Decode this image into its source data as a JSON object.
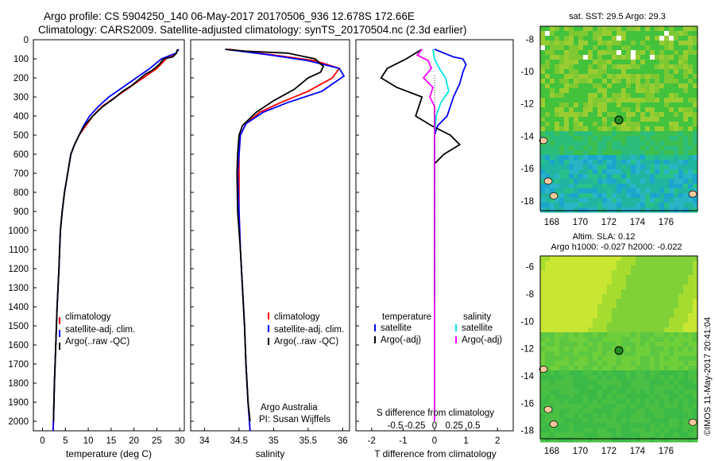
{
  "header": {
    "line1": "Argo profile: CS 5904250_140 06-May-2017 20170506_936 12.678S 172.66E",
    "line2": "Climatology: CARS2009. Satellite-adjusted climatology: synTS_20170504.nc (2.3d earlier)"
  },
  "colors": {
    "climatology": "#ff0000",
    "satellite": "#0000ff",
    "argo": "#000000",
    "sal_satellite": "#00e5e5",
    "sal_argo": "#ff00ff"
  },
  "depth_ticks": [
    "0",
    "100",
    "200",
    "300",
    "400",
    "500",
    "600",
    "700",
    "800",
    "900",
    "1000",
    "1100",
    "1200",
    "1300",
    "1400",
    "1500",
    "1600",
    "1700",
    "1800",
    "1900",
    "2000"
  ],
  "temp_panel": {
    "xlabel": "temperature (deg C)",
    "xticks": [
      "0",
      "5",
      "10",
      "15",
      "20",
      "25",
      "30"
    ],
    "legend": [
      "climatology",
      "satellite-adj. clim.",
      "Argo(..raw -QC)"
    ]
  },
  "sal_panel": {
    "xlabel": "salinity",
    "xticks": [
      "34",
      "34.5",
      "35",
      "35.5",
      "36"
    ],
    "legend": [
      "climatology",
      "satellite-adj. clim.",
      "Argo(..raw -QC)"
    ],
    "credit1": "Argo Australia",
    "credit2": "PI: Susan Wijffels"
  },
  "diff_panel": {
    "legend_temp_title": "temperature",
    "legend_sal_title": "salinity",
    "legend_temp": [
      "satellite",
      "Argo(-adj)"
    ],
    "legend_sal": [
      "satellite",
      "Argo(-adj)"
    ],
    "s_label": "S difference from climatology",
    "s_ticks": [
      "-0.5",
      "-0.25",
      "0",
      "0.25",
      "0.5"
    ],
    "t_ticks": [
      "-2",
      "-1",
      "0",
      "1",
      "2"
    ],
    "xlabel": "T difference from climatology"
  },
  "map_sst": {
    "title": "sat. SST: 29.5 Argo: 29.3",
    "lat_ticks": [
      "-8",
      "-10",
      "-12",
      "-14",
      "-16",
      "-18"
    ],
    "lon_ticks": [
      "168",
      "170",
      "172",
      "174",
      "176"
    ]
  },
  "map_sla": {
    "title1": "Altim. SLA: 0.12",
    "title2": "Argo h1000: -0.027 h2000: -0.022",
    "lat_ticks": [
      "-6",
      "-8",
      "-10",
      "-12",
      "-14",
      "-16",
      "-18"
    ],
    "lon_ticks": [
      "168",
      "170",
      "172",
      "174",
      "176"
    ]
  },
  "footer": "©IMOS 11-May-2017 20:41:04",
  "chart_data": [
    {
      "type": "line",
      "xlabel": "temperature (deg C)",
      "ylim": [
        2050,
        0
      ],
      "xlim": [
        -2,
        31
      ],
      "series": [
        {
          "name": "climatology",
          "color": "#ff0000",
          "points": [
            [
              29.7,
              50
            ],
            [
              29.2,
              70
            ],
            [
              27,
              100
            ],
            [
              25,
              150
            ],
            [
              22,
              200
            ],
            [
              19,
              250
            ],
            [
              16,
              300
            ],
            [
              13,
              350
            ],
            [
              11,
              400
            ],
            [
              9.5,
              450
            ],
            [
              8,
              500
            ],
            [
              7,
              550
            ],
            [
              6.2,
              600
            ],
            [
              5.5,
              700
            ],
            [
              4.8,
              800
            ],
            [
              4.3,
              900
            ],
            [
              3.9,
              1000
            ],
            [
              3.6,
              1200
            ],
            [
              3.2,
              1400
            ],
            [
              2.9,
              1600
            ],
            [
              2.6,
              1800
            ],
            [
              2.4,
              2000
            ],
            [
              2.3,
              2050
            ]
          ]
        },
        {
          "name": "satellite-adj. clim.",
          "color": "#0000ff",
          "points": [
            [
              29.8,
              50
            ],
            [
              29.2,
              70
            ],
            [
              26,
              100
            ],
            [
              23.5,
              150
            ],
            [
              20.5,
              200
            ],
            [
              17.5,
              250
            ],
            [
              14.5,
              300
            ],
            [
              12.2,
              350
            ],
            [
              10.3,
              400
            ],
            [
              9,
              450
            ],
            [
              8,
              500
            ],
            [
              7,
              550
            ],
            [
              6.2,
              600
            ],
            [
              5.5,
              700
            ],
            [
              4.8,
              800
            ],
            [
              4.3,
              900
            ],
            [
              3.9,
              1000
            ],
            [
              3.6,
              1200
            ],
            [
              3.2,
              1400
            ],
            [
              2.9,
              1600
            ],
            [
              2.6,
              1800
            ],
            [
              2.4,
              2000
            ],
            [
              2.3,
              2050
            ]
          ]
        },
        {
          "name": "Argo(..raw -QC)",
          "color": "#000000",
          "points": [
            [
              29.5,
              50
            ],
            [
              29.3,
              70
            ],
            [
              28.5,
              90
            ],
            [
              26.5,
              100
            ],
            [
              25.5,
              130
            ],
            [
              24,
              160
            ],
            [
              22.5,
              180
            ],
            [
              21,
              210
            ],
            [
              19.5,
              240
            ],
            [
              17.5,
              270
            ],
            [
              15.5,
              310
            ],
            [
              13.2,
              350
            ],
            [
              11,
              400
            ],
            [
              9.2,
              450
            ],
            [
              8,
              500
            ],
            [
              7,
              550
            ],
            [
              6.2,
              600
            ],
            [
              5.5,
              700
            ],
            [
              4.8,
              800
            ],
            [
              4.3,
              900
            ],
            [
              3.9,
              1000
            ],
            [
              3.6,
              1200
            ],
            [
              3.2,
              1400
            ],
            [
              2.9,
              1600
            ],
            [
              2.6,
              1800
            ],
            [
              2.4,
              2000
            ]
          ]
        }
      ]
    },
    {
      "type": "line",
      "xlabel": "salinity",
      "ylim": [
        2050,
        0
      ],
      "xlim": [
        33.8,
        36.1
      ],
      "series": [
        {
          "name": "climatology",
          "color": "#ff0000",
          "points": [
            [
              34.35,
              50
            ],
            [
              35.0,
              80
            ],
            [
              35.6,
              110
            ],
            [
              35.95,
              150
            ],
            [
              35.85,
              200
            ],
            [
              35.5,
              270
            ],
            [
              35.1,
              330
            ],
            [
              34.8,
              380
            ],
            [
              34.6,
              440
            ],
            [
              34.52,
              500
            ],
            [
              34.5,
              600
            ],
            [
              34.5,
              700
            ],
            [
              34.5,
              900
            ],
            [
              34.52,
              1100
            ],
            [
              34.55,
              1300
            ],
            [
              34.58,
              1500
            ],
            [
              34.6,
              1700
            ],
            [
              34.63,
              1900
            ],
            [
              34.66,
              2050
            ]
          ]
        },
        {
          "name": "satellite-adj. clim.",
          "color": "#0000ff",
          "points": [
            [
              34.3,
              50
            ],
            [
              34.95,
              80
            ],
            [
              35.5,
              110
            ],
            [
              35.95,
              150
            ],
            [
              36.02,
              190
            ],
            [
              35.7,
              270
            ],
            [
              35.2,
              330
            ],
            [
              34.85,
              380
            ],
            [
              34.6,
              440
            ],
            [
              34.52,
              500
            ],
            [
              34.5,
              600
            ],
            [
              34.48,
              700
            ],
            [
              34.5,
              900
            ],
            [
              34.52,
              1100
            ],
            [
              34.55,
              1300
            ],
            [
              34.58,
              1500
            ],
            [
              34.6,
              1700
            ],
            [
              34.63,
              1900
            ],
            [
              34.66,
              2050
            ]
          ]
        },
        {
          "name": "Argo(..raw -QC)",
          "color": "#000000",
          "points": [
            [
              34.3,
              50
            ],
            [
              34.6,
              60
            ],
            [
              35.2,
              70
            ],
            [
              35.6,
              100
            ],
            [
              35.72,
              140
            ],
            [
              35.68,
              170
            ],
            [
              35.5,
              200
            ],
            [
              35.3,
              260
            ],
            [
              35.0,
              320
            ],
            [
              34.75,
              380
            ],
            [
              34.55,
              450
            ],
            [
              34.5,
              500
            ],
            [
              34.48,
              600
            ],
            [
              34.47,
              700
            ],
            [
              34.48,
              900
            ],
            [
              34.52,
              1100
            ],
            [
              34.55,
              1300
            ],
            [
              34.58,
              1500
            ],
            [
              34.6,
              1700
            ],
            [
              34.63,
              1900
            ],
            [
              34.66,
              2000
            ]
          ]
        }
      ]
    },
    {
      "type": "line",
      "xlabel": "T difference from climatology",
      "x2label": "S difference from climatology",
      "ylim": [
        2050,
        0
      ],
      "xlim": [
        -2.5,
        2.5
      ],
      "series": [
        {
          "name": "temperature satellite",
          "color": "#0000ff",
          "points": [
            [
              0,
              50
            ],
            [
              0.3,
              70
            ],
            [
              0.6,
              90
            ],
            [
              0.9,
              100
            ],
            [
              1.0,
              130
            ],
            [
              0.9,
              170
            ],
            [
              0.8,
              230
            ],
            [
              0.6,
              300
            ],
            [
              0.5,
              350
            ],
            [
              0.4,
              400
            ],
            [
              0.1,
              450
            ],
            [
              0,
              500
            ],
            [
              0,
              600
            ],
            [
              0,
              900
            ],
            [
              0,
              2000
            ]
          ]
        },
        {
          "name": "temperature Argo(-adj)",
          "color": "#000000",
          "points": [
            [
              -0.4,
              50
            ],
            [
              -0.9,
              100
            ],
            [
              -1.5,
              150
            ],
            [
              -1.7,
              200
            ],
            [
              -1.2,
              250
            ],
            [
              -0.4,
              300
            ],
            [
              -0.6,
              400
            ],
            [
              -0.1,
              450
            ],
            [
              0.5,
              500
            ],
            [
              0.8,
              550
            ],
            [
              0.3,
              600
            ],
            [
              0,
              650
            ],
            [
              0,
              800
            ],
            [
              0,
              2000
            ]
          ]
        },
        {
          "name": "salinity satellite",
          "color": "#00e5e5",
          "points": [
            [
              -0.05,
              50
            ],
            [
              0,
              100
            ],
            [
              0.15,
              150
            ],
            [
              0.35,
              200
            ],
            [
              0.45,
              270
            ],
            [
              0.2,
              330
            ],
            [
              0.05,
              400
            ],
            [
              0,
              500
            ],
            [
              0,
              700
            ],
            [
              0,
              1300
            ],
            [
              0,
              2000
            ]
          ]
        },
        {
          "name": "salinity Argo(-adj)",
          "color": "#ff00ff",
          "points": [
            [
              -0.4,
              50
            ],
            [
              -0.55,
              80
            ],
            [
              -0.2,
              110
            ],
            [
              -0.1,
              150
            ],
            [
              -0.35,
              200
            ],
            [
              -0.05,
              250
            ],
            [
              -0.15,
              300
            ],
            [
              0,
              350
            ],
            [
              0,
              500
            ],
            [
              0,
              2000
            ]
          ]
        }
      ]
    }
  ]
}
